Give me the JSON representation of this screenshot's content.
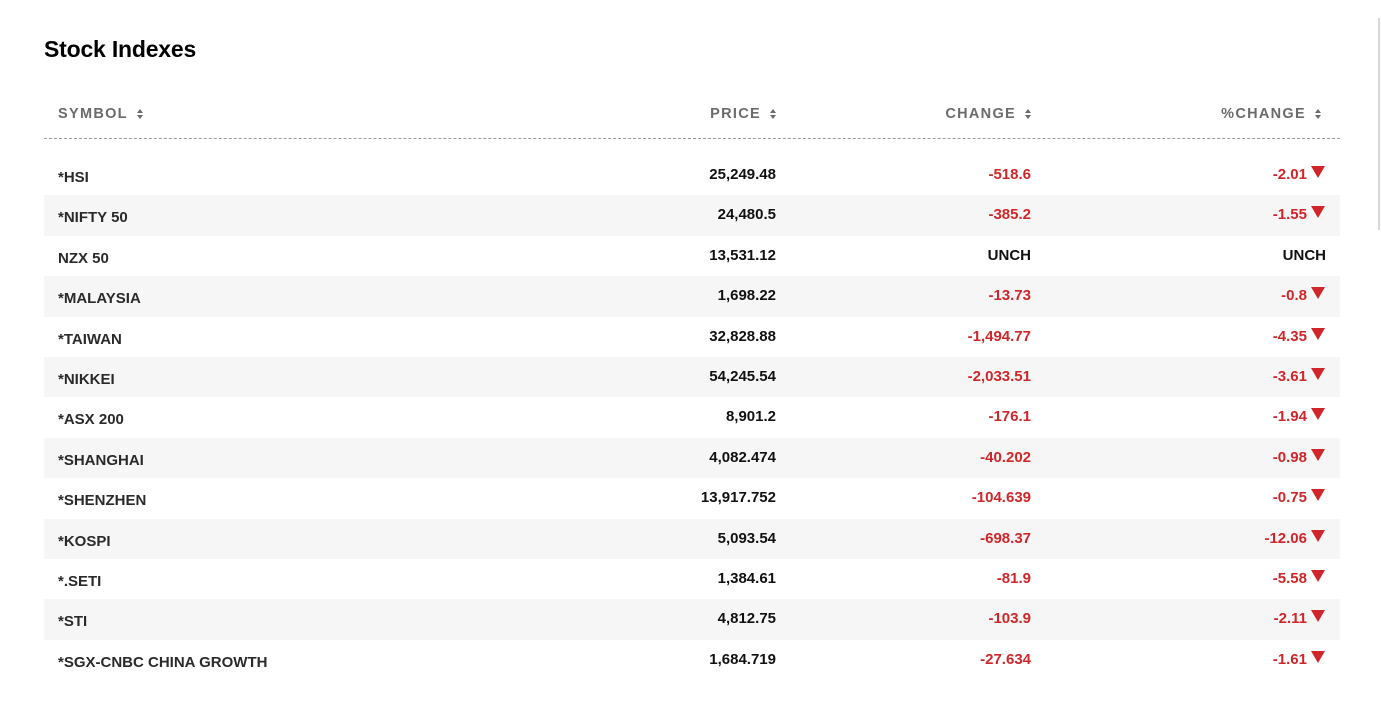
{
  "title": "Stock Indexes",
  "columns": {
    "symbol": "SYMBOL",
    "price": "PRICE",
    "change": "CHANGE",
    "pct_change": "%CHANGE"
  },
  "colors": {
    "down": "#d0262a",
    "neutral": "#111111",
    "header": "#6b6b6b"
  },
  "rows": [
    {
      "symbol": "*HSI",
      "price": "25,249.48",
      "change": "-518.6",
      "pct": "-2.01",
      "direction": "down"
    },
    {
      "symbol": "*NIFTY 50",
      "price": "24,480.5",
      "change": "-385.2",
      "pct": "-1.55",
      "direction": "down"
    },
    {
      "symbol": "NZX 50",
      "price": "13,531.12",
      "change": "UNCH",
      "pct": "UNCH",
      "direction": "unch"
    },
    {
      "symbol": "*MALAYSIA",
      "price": "1,698.22",
      "change": "-13.73",
      "pct": "-0.8",
      "direction": "down"
    },
    {
      "symbol": "*TAIWAN",
      "price": "32,828.88",
      "change": "-1,494.77",
      "pct": "-4.35",
      "direction": "down"
    },
    {
      "symbol": "*NIKKEI",
      "price": "54,245.54",
      "change": "-2,033.51",
      "pct": "-3.61",
      "direction": "down"
    },
    {
      "symbol": "*ASX 200",
      "price": "8,901.2",
      "change": "-176.1",
      "pct": "-1.94",
      "direction": "down"
    },
    {
      "symbol": "*SHANGHAI",
      "price": "4,082.474",
      "change": "-40.202",
      "pct": "-0.98",
      "direction": "down"
    },
    {
      "symbol": "*SHENZHEN",
      "price": "13,917.752",
      "change": "-104.639",
      "pct": "-0.75",
      "direction": "down"
    },
    {
      "symbol": "*KOSPI",
      "price": "5,093.54",
      "change": "-698.37",
      "pct": "-12.06",
      "direction": "down"
    },
    {
      "symbol": "*.SETI",
      "price": "1,384.61",
      "change": "-81.9",
      "pct": "-5.58",
      "direction": "down"
    },
    {
      "symbol": "*STI",
      "price": "4,812.75",
      "change": "-103.9",
      "pct": "-2.11",
      "direction": "down"
    },
    {
      "symbol": "*SGX-CNBC CHINA GROWTH",
      "price": "1,684.719",
      "change": "-27.634",
      "pct": "-1.61",
      "direction": "down"
    }
  ]
}
